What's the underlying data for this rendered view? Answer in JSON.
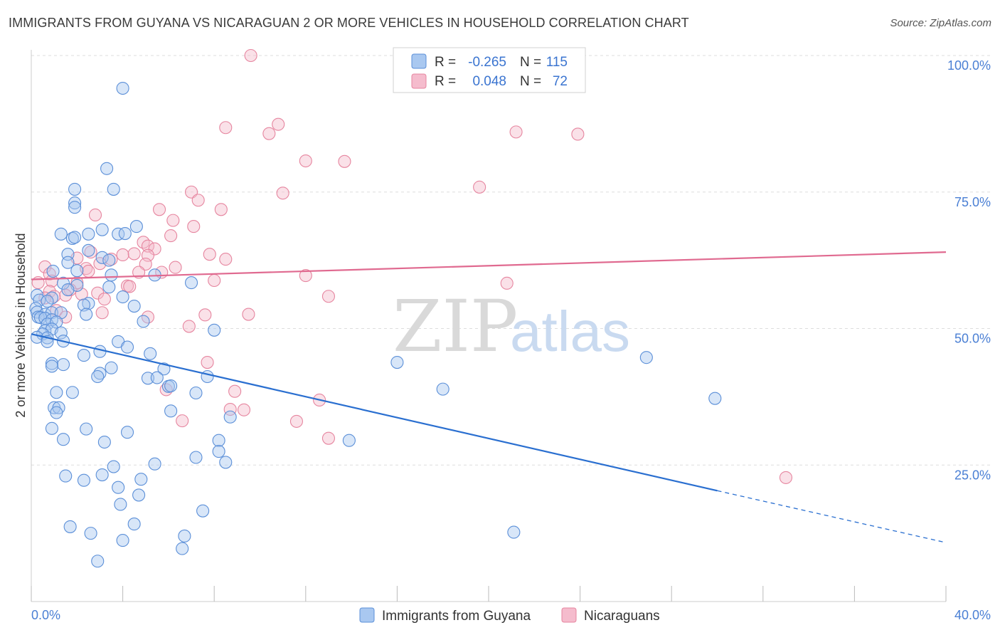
{
  "title": "IMMIGRANTS FROM GUYANA VS NICARAGUAN 2 OR MORE VEHICLES IN HOUSEHOLD CORRELATION CHART",
  "source": "Source: ZipAtlas.com",
  "watermark": {
    "zip": "ZIP",
    "atlas": "atlas"
  },
  "colors": {
    "blue_fill": "#a9c8f0",
    "blue_stroke": "#5b8fd8",
    "blue_line": "#2a6fd0",
    "pink_fill": "#f5bccd",
    "pink_stroke": "#e6859f",
    "pink_line": "#e06a90",
    "grid": "#dddddd",
    "tick_text": "#4a7fd4"
  },
  "legend_box": {
    "row1": {
      "r_label": "R =",
      "r_value": "-0.265",
      "n_label": "N =",
      "n_value": "115"
    },
    "row2": {
      "r_label": "R =",
      "r_value": "0.048",
      "n_label": "N =",
      "n_value": "72"
    }
  },
  "bottom_legend": {
    "series1": "Immigrants from Guyana",
    "series2": "Nicaraguans"
  },
  "chart_data": {
    "type": "scatter",
    "title": "IMMIGRANTS FROM GUYANA VS NICARAGUAN 2 OR MORE VEHICLES IN HOUSEHOLD CORRELATION CHART",
    "xlabel": "",
    "ylabel": "2 or more Vehicles in Household",
    "xlim": [
      0,
      40
    ],
    "ylim": [
      0,
      102
    ],
    "x_tick_labels": {
      "min": "0.0%",
      "max": "40.0%"
    },
    "y_tick_labels": [
      "25.0%",
      "50.0%",
      "75.0%",
      "100.0%"
    ],
    "y_ticks": [
      25,
      50,
      75,
      100
    ],
    "x_ticks": [
      0,
      4,
      8,
      12,
      16,
      20,
      24,
      28,
      32,
      36,
      40
    ],
    "grid": true,
    "legend_position": "top-center",
    "series": [
      {
        "name": "Immigrants from Guyana",
        "color": "blue",
        "trend": {
          "x0": 0,
          "y0": 49.0,
          "x1": 30,
          "y1": 20.3,
          "dashed_to_x": 40,
          "dashed_to_y": 10.8
        },
        "points": [
          [
            4.0,
            94
          ],
          [
            3.3,
            79.3
          ],
          [
            1.9,
            75.5
          ],
          [
            3.6,
            75.5
          ],
          [
            1.9,
            73
          ],
          [
            1.9,
            72.2
          ],
          [
            4.6,
            68.7
          ],
          [
            1.3,
            67.3
          ],
          [
            2.5,
            67.3
          ],
          [
            3.1,
            68.1
          ],
          [
            3.8,
            67.3
          ],
          [
            4.1,
            67.4
          ],
          [
            1.8,
            66.5
          ],
          [
            1.9,
            66.7
          ],
          [
            2.5,
            64.3
          ],
          [
            1.6,
            63.6
          ],
          [
            3.1,
            63.0
          ],
          [
            3.4,
            62.5
          ],
          [
            1.6,
            62.1
          ],
          [
            3.5,
            59.8
          ],
          [
            5.4,
            59.8
          ],
          [
            2.0,
            60.6
          ],
          [
            0.95,
            60.5
          ],
          [
            1.4,
            58.3
          ],
          [
            2.0,
            57.9
          ],
          [
            3.4,
            57.6
          ],
          [
            1.6,
            57.1
          ],
          [
            7.0,
            58.4
          ],
          [
            0.25,
            56.1
          ],
          [
            0.9,
            55.6
          ],
          [
            4.0,
            55.8
          ],
          [
            0.35,
            55.2
          ],
          [
            0.7,
            55.0
          ],
          [
            2.5,
            54.6
          ],
          [
            2.3,
            54.3
          ],
          [
            4.5,
            54.1
          ],
          [
            0.2,
            53.7
          ],
          [
            0.25,
            53.0
          ],
          [
            0.6,
            52.6
          ],
          [
            0.9,
            52.9
          ],
          [
            1.3,
            52.9
          ],
          [
            2.4,
            52.6
          ],
          [
            0.3,
            52.1
          ],
          [
            0.4,
            52.0
          ],
          [
            0.6,
            51.9
          ],
          [
            0.9,
            51.6
          ],
          [
            0.7,
            50.8
          ],
          [
            1.1,
            51.2
          ],
          [
            4.9,
            51.3
          ],
          [
            0.6,
            49.6
          ],
          [
            0.9,
            49.9
          ],
          [
            0.5,
            49.0
          ],
          [
            1.3,
            49.2
          ],
          [
            8.0,
            49.7
          ],
          [
            0.25,
            48.4
          ],
          [
            0.7,
            48.3
          ],
          [
            0.7,
            47.6
          ],
          [
            1.4,
            47.7
          ],
          [
            3.8,
            47.6
          ],
          [
            4.2,
            46.6
          ],
          [
            3.0,
            45.8
          ],
          [
            2.3,
            45.1
          ],
          [
            5.2,
            45.4
          ],
          [
            16.0,
            43.8
          ],
          [
            26.9,
            44.7
          ],
          [
            0.9,
            43.6
          ],
          [
            1.4,
            43.4
          ],
          [
            0.9,
            43.1
          ],
          [
            3.5,
            42.8
          ],
          [
            5.8,
            42.6
          ],
          [
            3.0,
            41.8
          ],
          [
            2.9,
            41.2
          ],
          [
            5.1,
            40.9
          ],
          [
            5.5,
            41.0
          ],
          [
            7.7,
            41.2
          ],
          [
            6.0,
            39.4
          ],
          [
            6.1,
            39.5
          ],
          [
            18.0,
            38.9
          ],
          [
            1.1,
            38.3
          ],
          [
            1.8,
            38.3
          ],
          [
            7.2,
            38.2
          ],
          [
            29.9,
            37.2
          ],
          [
            1.0,
            35.5
          ],
          [
            1.2,
            35.5
          ],
          [
            1.1,
            34.6
          ],
          [
            6.1,
            34.9
          ],
          [
            8.7,
            33.8
          ],
          [
            0.9,
            31.7
          ],
          [
            2.4,
            31.6
          ],
          [
            4.2,
            31.0
          ],
          [
            1.4,
            29.7
          ],
          [
            3.2,
            29.2
          ],
          [
            8.2,
            29.5
          ],
          [
            13.9,
            29.5
          ],
          [
            8.2,
            27.5
          ],
          [
            7.2,
            26.4
          ],
          [
            8.5,
            25.5
          ],
          [
            5.4,
            25.2
          ],
          [
            3.6,
            24.7
          ],
          [
            1.5,
            23.0
          ],
          [
            3.1,
            23.2
          ],
          [
            2.3,
            22.2
          ],
          [
            4.8,
            22.4
          ],
          [
            3.8,
            20.9
          ],
          [
            4.7,
            19.5
          ],
          [
            3.9,
            17.8
          ],
          [
            7.5,
            16.6
          ],
          [
            1.7,
            13.7
          ],
          [
            4.5,
            14.2
          ],
          [
            2.6,
            12.5
          ],
          [
            21.1,
            12.7
          ],
          [
            6.7,
            12.0
          ],
          [
            4.0,
            11.2
          ],
          [
            6.6,
            9.7
          ],
          [
            2.9,
            7.4
          ]
        ]
      },
      {
        "name": "Nicaraguans",
        "color": "pink",
        "trend": {
          "x0": 0,
          "y0": 59.0,
          "x1": 40,
          "y1": 64.0
        },
        "points": [
          [
            9.6,
            100
          ],
          [
            10.8,
            87.4
          ],
          [
            8.5,
            86.8
          ],
          [
            10.4,
            85.7
          ],
          [
            21.2,
            86.0
          ],
          [
            23.9,
            85.6
          ],
          [
            12.0,
            80.7
          ],
          [
            13.7,
            80.6
          ],
          [
            19.6,
            75.9
          ],
          [
            7.0,
            75.0
          ],
          [
            11.0,
            74.8
          ],
          [
            7.3,
            73.5
          ],
          [
            5.6,
            71.8
          ],
          [
            8.3,
            71.8
          ],
          [
            2.8,
            70.8
          ],
          [
            6.2,
            69.8
          ],
          [
            7.1,
            68.7
          ],
          [
            6.1,
            67.0
          ],
          [
            4.9,
            65.8
          ],
          [
            5.1,
            65.1
          ],
          [
            5.4,
            64.6
          ],
          [
            2.6,
            64.0
          ],
          [
            4.0,
            63.5
          ],
          [
            4.5,
            63.7
          ],
          [
            7.8,
            63.6
          ],
          [
            5.1,
            63.4
          ],
          [
            2.0,
            62.9
          ],
          [
            3.5,
            62.7
          ],
          [
            8.5,
            62.7
          ],
          [
            3.0,
            61.9
          ],
          [
            5.0,
            61.8
          ],
          [
            0.6,
            61.3
          ],
          [
            6.3,
            61.2
          ],
          [
            2.4,
            61.0
          ],
          [
            2.5,
            60.5
          ],
          [
            4.7,
            60.3
          ],
          [
            5.7,
            60.3
          ],
          [
            0.8,
            60.0
          ],
          [
            12.0,
            59.7
          ],
          [
            8.0,
            58.8
          ],
          [
            2.0,
            58.4
          ],
          [
            20.8,
            58.3
          ],
          [
            0.9,
            58.7
          ],
          [
            0.3,
            58.4
          ],
          [
            4.2,
            57.8
          ],
          [
            1.7,
            57.1
          ],
          [
            0.8,
            56.8
          ],
          [
            2.9,
            56.5
          ],
          [
            2.2,
            56.3
          ],
          [
            1.5,
            56.1
          ],
          [
            1.0,
            55.9
          ],
          [
            13.0,
            55.9
          ],
          [
            0.6,
            55.6
          ],
          [
            3.2,
            55.4
          ],
          [
            1.1,
            53.3
          ],
          [
            3.1,
            52.9
          ],
          [
            9.5,
            52.6
          ],
          [
            7.6,
            52.5
          ],
          [
            5.1,
            52.1
          ],
          [
            1.5,
            52.1
          ],
          [
            6.9,
            50.4
          ],
          [
            7.7,
            43.8
          ],
          [
            5.9,
            38.8
          ],
          [
            8.9,
            38.5
          ],
          [
            12.6,
            36.9
          ],
          [
            8.7,
            35.2
          ],
          [
            9.3,
            35.1
          ],
          [
            6.6,
            33.1
          ],
          [
            11.6,
            33.0
          ],
          [
            13.0,
            29.9
          ],
          [
            33.0,
            22.7
          ],
          [
            4.3,
            57.7
          ]
        ]
      }
    ]
  }
}
